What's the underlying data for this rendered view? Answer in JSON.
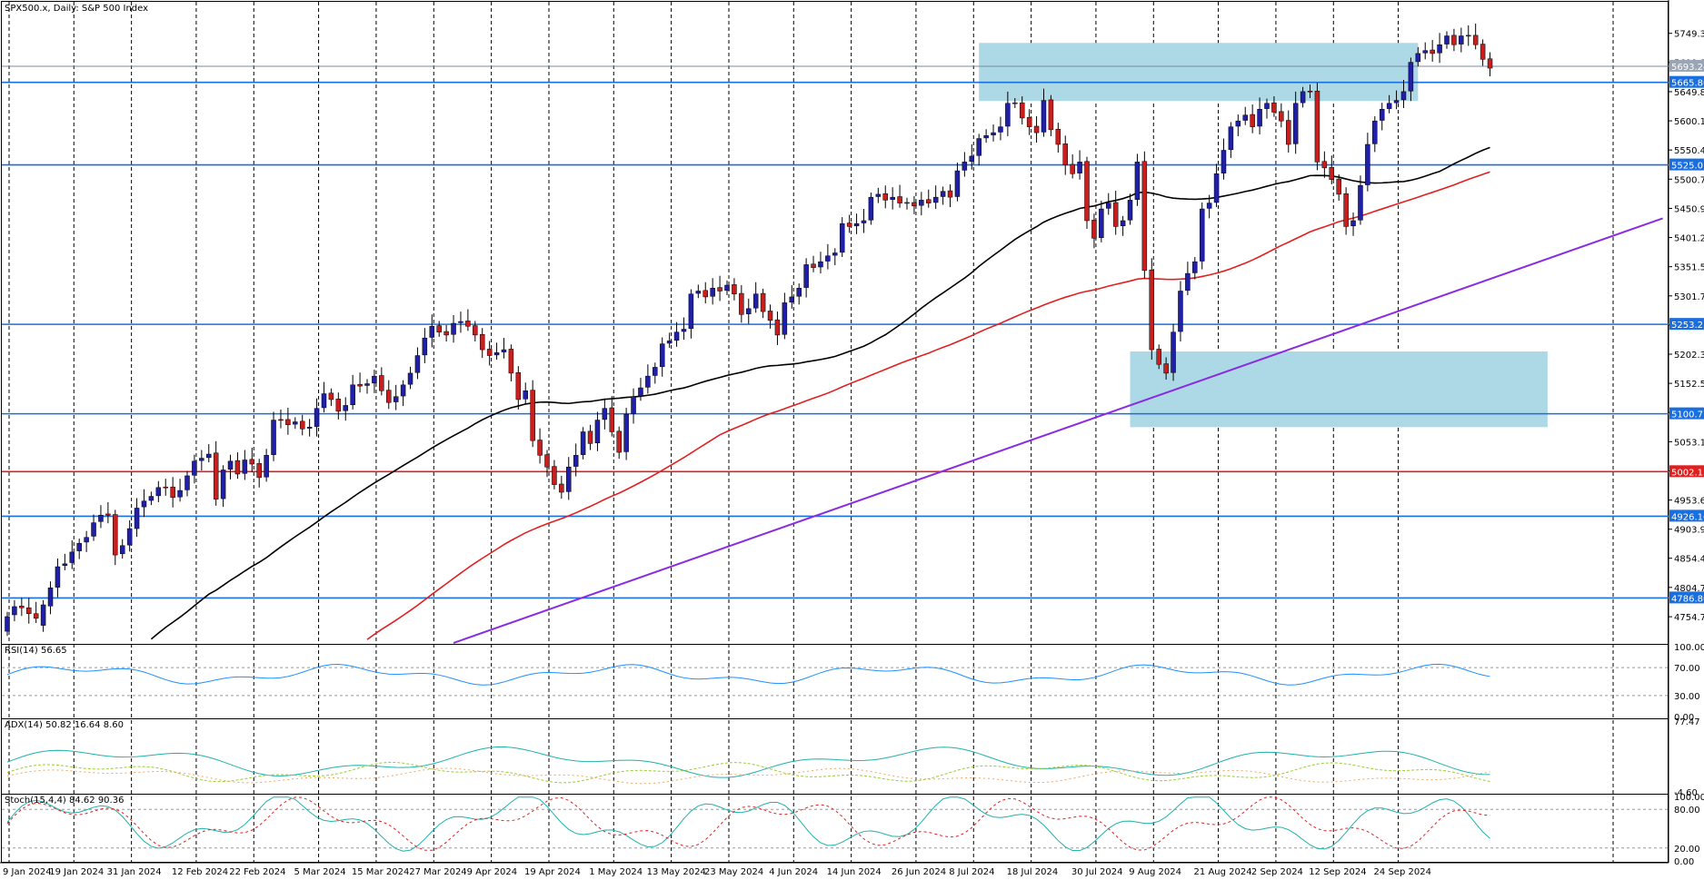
{
  "header": {
    "title": "SPX500.x, Daily:  S&P 500 Index"
  },
  "colors": {
    "bull": "#1f1fa8",
    "bear": "#c81e1e",
    "wick": "#000000",
    "zone": "#add8e6",
    "level": "#1a6fe0",
    "level_red": "#e02020",
    "ma_black": "#000000",
    "ma_red": "#e02020",
    "trend": "#8a2be2",
    "axis_label_bg": "#1a6fe0"
  },
  "chart_data": {
    "type": "candlestick",
    "price_axis": {
      "min": 4710,
      "max": 5800,
      "ticks": [
        "5749.35",
        "5699.81",
        "5649.89",
        "5600.16",
        "5550.43",
        "5500.71",
        "5450.97",
        "5401.24",
        "5351.51",
        "5301.78",
        "5252.05",
        "5202.32",
        "5152.59",
        "5102.86",
        "5053.13",
        "5003.40",
        "4953.67",
        "4903.94",
        "4854.48",
        "4804.75",
        "4754.75"
      ]
    },
    "price_labels": [
      {
        "value": 5693.24,
        "text": "5693.24",
        "style": "current"
      },
      {
        "value": 5665.8,
        "text": "5665.80",
        "style": "blue"
      },
      {
        "value": 5525.01,
        "text": "5525.01",
        "style": "blue"
      },
      {
        "value": 5253.25,
        "text": "5253.25",
        "style": "blue"
      },
      {
        "value": 5100.77,
        "text": "5100.77",
        "style": "blue"
      },
      {
        "value": 5002.13,
        "text": "5002.13",
        "style": "red"
      },
      {
        "value": 4926.16,
        "text": "4926.16",
        "style": "blue"
      },
      {
        "value": 4786.8,
        "text": "4786.80",
        "style": "blue"
      }
    ],
    "levels": [
      5665.8,
      5525.01,
      5253.25,
      5100.77,
      5002.13,
      4926.16,
      4786.8
    ],
    "zones": [
      {
        "from_bar": 135,
        "to_bar": 196,
        "low": 5634,
        "high": 5733
      },
      {
        "from_bar": 156,
        "to_bar": 214,
        "low": 5078,
        "high": 5207
      }
    ],
    "date_labels": [
      {
        "bar": 0,
        "text": "9 Jan 2024"
      },
      {
        "bar": 9,
        "text": "19 Jan 2024"
      },
      {
        "bar": 17,
        "text": "31 Jan 2024"
      },
      {
        "bar": 26,
        "text": "12 Feb 2024"
      },
      {
        "bar": 34,
        "text": "22 Feb 2024"
      },
      {
        "bar": 43,
        "text": "5 Mar 2024"
      },
      {
        "bar": 51,
        "text": "15 Mar 2024"
      },
      {
        "bar": 59,
        "text": "27 Mar 2024"
      },
      {
        "bar": 67,
        "text": "9 Apr 2024"
      },
      {
        "bar": 75,
        "text": "19 Apr 2024"
      },
      {
        "bar": 84,
        "text": "1 May 2024"
      },
      {
        "bar": 92,
        "text": "13 May 2024"
      },
      {
        "bar": 100,
        "text": "23 May 2024"
      },
      {
        "bar": 109,
        "text": "4 Jun 2024"
      },
      {
        "bar": 117,
        "text": "14 Jun 2024"
      },
      {
        "bar": 126,
        "text": "26 Jun 2024"
      },
      {
        "bar": 134,
        "text": "8 Jul 2024"
      },
      {
        "bar": 142,
        "text": "18 Jul 2024"
      },
      {
        "bar": 151,
        "text": "30 Jul 2024"
      },
      {
        "bar": 159,
        "text": "9 Aug 2024"
      },
      {
        "bar": 168,
        "text": "21 Aug 2024"
      },
      {
        "bar": 176,
        "text": "2 Sep 2024"
      },
      {
        "bar": 184,
        "text": "12 Sep 2024"
      },
      {
        "bar": 193,
        "text": "24 Sep 2024"
      }
    ],
    "trendline": {
      "from": {
        "bar": 62,
        "value": 4710
      },
      "to": {
        "bar": 230,
        "value": 5434
      }
    },
    "close_series": [
      4755,
      4772,
      4770,
      4760,
      4752,
      4775,
      4804,
      4840,
      4845,
      4865,
      4880,
      4890,
      4915,
      4928,
      4928,
      4860,
      4876,
      4905,
      4940,
      4952,
      4960,
      4975,
      4975,
      4958,
      4970,
      4995,
      5020,
      5025,
      5032,
      4955,
      5005,
      5020,
      4998,
      5022,
      5015,
      4992,
      5030,
      5090,
      5090,
      5082,
      5087,
      5075,
      5078,
      5110,
      5135,
      5125,
      5105,
      5115,
      5150,
      5148,
      5152,
      5165,
      5140,
      5120,
      5130,
      5150,
      5170,
      5200,
      5230,
      5250,
      5240,
      5235,
      5255,
      5258,
      5250,
      5235,
      5210,
      5200,
      5205,
      5210,
      5170,
      5125,
      5140,
      5055,
      5030,
      5010,
      4980,
      4967,
      5010,
      5030,
      5070,
      5050,
      5090,
      5110,
      5070,
      5035,
      5100,
      5130,
      5145,
      5165,
      5180,
      5220,
      5225,
      5240,
      5245,
      5305,
      5310,
      5300,
      5315,
      5310,
      5320,
      5305,
      5270,
      5280,
      5305,
      5275,
      5260,
      5235,
      5290,
      5300,
      5315,
      5355,
      5350,
      5360,
      5370,
      5375,
      5425,
      5420,
      5425,
      5430,
      5470,
      5475,
      5465,
      5470,
      5460,
      5460,
      5455,
      5465,
      5460,
      5470,
      5480,
      5470,
      5515,
      5530,
      5540,
      5570,
      5575,
      5580,
      5590,
      5630,
      5630,
      5605,
      5590,
      5580,
      5635,
      5585,
      5560,
      5525,
      5510,
      5530,
      5430,
      5400,
      5450,
      5460,
      5420,
      5430,
      5465,
      5530,
      5345,
      5210,
      5185,
      5170,
      5240,
      5310,
      5340,
      5360,
      5450,
      5460,
      5510,
      5550,
      5590,
      5600,
      5610,
      5590,
      5620,
      5630,
      5615,
      5600,
      5560,
      5630,
      5650,
      5650,
      5530,
      5520,
      5500,
      5475,
      5420,
      5430,
      5490,
      5560,
      5600,
      5620,
      5630,
      5635,
      5650,
      5700,
      5715,
      5720,
      5715,
      5730,
      5745,
      5730,
      5745,
      5745,
      5730,
      5705,
      5690
    ],
    "open_series": [
      4730,
      4758,
      4773,
      4770,
      4760,
      4740,
      4773,
      4805,
      4842,
      4847,
      4867,
      4882,
      4892,
      4917,
      4930,
      4929,
      4862,
      4877,
      4905,
      4942,
      4953,
      4961,
      4976,
      4976,
      4959,
      4971,
      4996,
      5021,
      5026,
      5034,
      4956,
      5006,
      5021,
      4999,
      5023,
      5016,
      4993,
      5031,
      5091,
      5091,
      5083,
      5088,
      5076,
      5079,
      5111,
      5136,
      5126,
      5106,
      5116,
      5151,
      5149,
      5153,
      5166,
      5141,
      5121,
      5131,
      5151,
      5171,
      5201,
      5231,
      5251,
      5241,
      5236,
      5256,
      5259,
      5251,
      5236,
      5211,
      5201,
      5206,
      5211,
      5171,
      5126,
      5141,
      5056,
      5031,
      5011,
      4981,
      4968,
      5011,
      5031,
      5071,
      5051,
      5091,
      5111,
      5071,
      5036,
      5101,
      5131,
      5146,
      5166,
      5181,
      5221,
      5226,
      5241,
      5246,
      5306,
      5311,
      5301,
      5316,
      5311,
      5321,
      5306,
      5271,
      5281,
      5306,
      5276,
      5261,
      5236,
      5291,
      5301,
      5316,
      5356,
      5351,
      5361,
      5371,
      5376,
      5426,
      5421,
      5426,
      5431,
      5471,
      5476,
      5466,
      5471,
      5461,
      5461,
      5456,
      5466,
      5461,
      5471,
      5481,
      5471,
      5516,
      5531,
      5541,
      5571,
      5576,
      5581,
      5591,
      5631,
      5631,
      5606,
      5591,
      5581,
      5636,
      5586,
      5561,
      5526,
      5511,
      5531,
      5431,
      5401,
      5451,
      5461,
      5421,
      5431,
      5466,
      5531,
      5346,
      5211,
      5186,
      5171,
      5241,
      5311,
      5341,
      5361,
      5451,
      5461,
      5511,
      5551,
      5591,
      5601,
      5611,
      5591,
      5621,
      5631,
      5616,
      5601,
      5561,
      5631,
      5651,
      5651,
      5531,
      5521,
      5501,
      5476,
      5421,
      5431,
      5491,
      5561,
      5601,
      5621,
      5631,
      5636,
      5651,
      5701,
      5716,
      5721,
      5716,
      5731,
      5746,
      5731,
      5746,
      5746,
      5731,
      5706
    ]
  },
  "indicators": {
    "rsi": {
      "label": "RSI(14) 56.65",
      "ticks": [
        "100.00",
        "70.00",
        "30.00",
        "0.00"
      ],
      "levels": [
        70,
        30
      ],
      "min": 0,
      "max": 100
    },
    "adx": {
      "label": "ADX(14) 50.82 16.64 8.60",
      "ticks": [
        "77.47",
        "-4.60"
      ],
      "min": -4.6,
      "max": 77.47
    },
    "stoch": {
      "label": "Stoch(15,4,4) 84.62 90.36",
      "ticks": [
        "100.00",
        "80.00",
        "20.00",
        "0.00"
      ],
      "levels": [
        80,
        20
      ],
      "min": 0,
      "max": 100
    }
  }
}
